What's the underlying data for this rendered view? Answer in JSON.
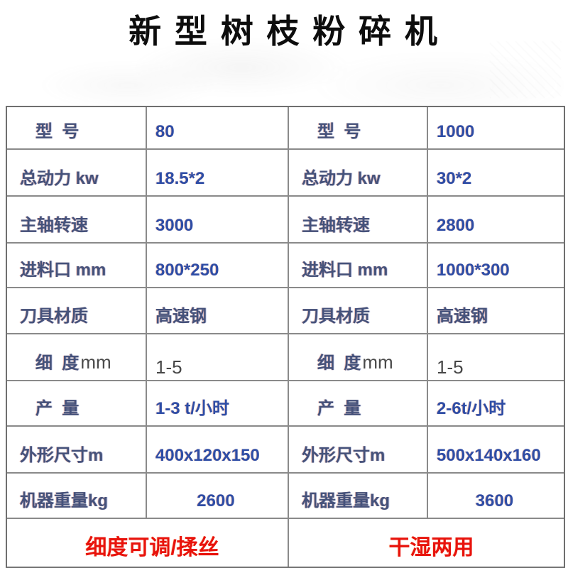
{
  "title": "新 型 树 枝 粉 碎 机",
  "table": {
    "rows": [
      {
        "ll": "型  号",
        "lv": "80",
        "rl": "型  号",
        "rv": "1000"
      },
      {
        "ll": "总动力 kw",
        "lv": "18.5*2",
        "rl": "总动力 kw",
        "rv": "30*2"
      },
      {
        "ll": "主轴转速",
        "lv": "3000",
        "rl": "主轴转速",
        "rv": "2800"
      },
      {
        "ll": "进料口 mm",
        "lv": "800*250",
        "rl": "进料口 mm",
        "rv": "1000*300"
      },
      {
        "ll": "刀具材质",
        "lv": "高速钢",
        "rl": "刀具材质",
        "rv": "高速钢"
      },
      {
        "ll": "细  度",
        "lu": "mm",
        "lv": "1-5",
        "rl": "细  度",
        "ru": "mm",
        "rv": "1-5"
      },
      {
        "ll": "产  量",
        "lv": "1-3 t/小时",
        "rl": "产  量",
        "rv": "2-6t/小时"
      },
      {
        "ll": "外形尺寸m",
        "lv": "400x120x150",
        "rl": "外形尺寸m",
        "rv": "500x140x160"
      },
      {
        "ll": "机器重量kg",
        "lv": "2600",
        "rl": "机器重量kg",
        "rv": "3600"
      }
    ],
    "footer": {
      "left": "细度可调/揉丝",
      "right": "干湿两用"
    }
  },
  "colors": {
    "label_blue": "#45527b",
    "value_blue": "#2e4da6",
    "accent_red": "#e8130c",
    "border_gray": "#8a8a8a"
  }
}
